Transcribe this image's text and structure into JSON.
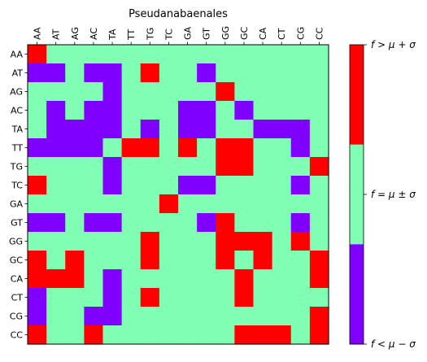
{
  "chart_data": {
    "type": "heatmap",
    "title": "Pseudanabaenales",
    "xlabel": "",
    "ylabel": "",
    "x_tick_labels": [
      "AA",
      "AT",
      "AG",
      "AC",
      "TA",
      "TT",
      "TG",
      "TC",
      "GA",
      "GT",
      "GG",
      "GC",
      "CA",
      "CT",
      "CG",
      "CC"
    ],
    "y_tick_labels": [
      "AA",
      "AT",
      "AG",
      "AC",
      "TA",
      "TT",
      "TG",
      "TC",
      "GA",
      "GT",
      "GG",
      "GC",
      "CA",
      "CT",
      "CG",
      "CC"
    ],
    "x_tick_position": "top",
    "grid": false,
    "categories": [
      "low",
      "mid",
      "high"
    ],
    "category_colors": [
      "#8000ff",
      "#80ffb4",
      "#ff0000"
    ],
    "colorbar_labels": [
      "f < μ − σ",
      "f = μ ± σ",
      "f > μ + σ"
    ],
    "colorbar_position": "right",
    "cells": [
      [
        2,
        1,
        1,
        1,
        1,
        1,
        1,
        1,
        1,
        1,
        1,
        1,
        1,
        1,
        1,
        1
      ],
      [
        0,
        0,
        1,
        0,
        0,
        1,
        2,
        1,
        1,
        0,
        1,
        1,
        1,
        1,
        1,
        1
      ],
      [
        1,
        1,
        1,
        1,
        0,
        1,
        1,
        1,
        1,
        1,
        2,
        1,
        1,
        1,
        1,
        1
      ],
      [
        1,
        0,
        1,
        0,
        0,
        1,
        1,
        1,
        0,
        0,
        1,
        0,
        1,
        1,
        1,
        1
      ],
      [
        1,
        0,
        0,
        0,
        0,
        1,
        0,
        1,
        0,
        0,
        1,
        1,
        0,
        0,
        0,
        1
      ],
      [
        0,
        0,
        0,
        0,
        1,
        2,
        2,
        1,
        2,
        1,
        2,
        2,
        1,
        1,
        0,
        1
      ],
      [
        1,
        1,
        1,
        1,
        0,
        1,
        1,
        1,
        1,
        1,
        2,
        2,
        1,
        1,
        1,
        2
      ],
      [
        2,
        1,
        1,
        1,
        0,
        1,
        1,
        1,
        0,
        0,
        1,
        1,
        1,
        1,
        0,
        1
      ],
      [
        1,
        1,
        1,
        1,
        1,
        1,
        1,
        2,
        1,
        1,
        1,
        1,
        1,
        1,
        1,
        1
      ],
      [
        0,
        0,
        1,
        0,
        0,
        1,
        1,
        1,
        1,
        0,
        2,
        1,
        1,
        1,
        0,
        1
      ],
      [
        1,
        1,
        1,
        1,
        1,
        1,
        2,
        1,
        1,
        1,
        2,
        2,
        2,
        1,
        2,
        1
      ],
      [
        2,
        1,
        2,
        1,
        1,
        1,
        2,
        1,
        1,
        1,
        2,
        1,
        2,
        1,
        1,
        2
      ],
      [
        2,
        2,
        2,
        1,
        0,
        1,
        1,
        1,
        1,
        1,
        1,
        2,
        1,
        1,
        1,
        2
      ],
      [
        0,
        1,
        1,
        1,
        0,
        1,
        2,
        1,
        1,
        1,
        1,
        2,
        1,
        1,
        1,
        1
      ],
      [
        0,
        1,
        1,
        0,
        0,
        1,
        1,
        1,
        1,
        1,
        1,
        1,
        1,
        1,
        1,
        2
      ],
      [
        2,
        1,
        1,
        2,
        1,
        1,
        1,
        1,
        1,
        1,
        1,
        2,
        2,
        2,
        1,
        2
      ]
    ]
  }
}
